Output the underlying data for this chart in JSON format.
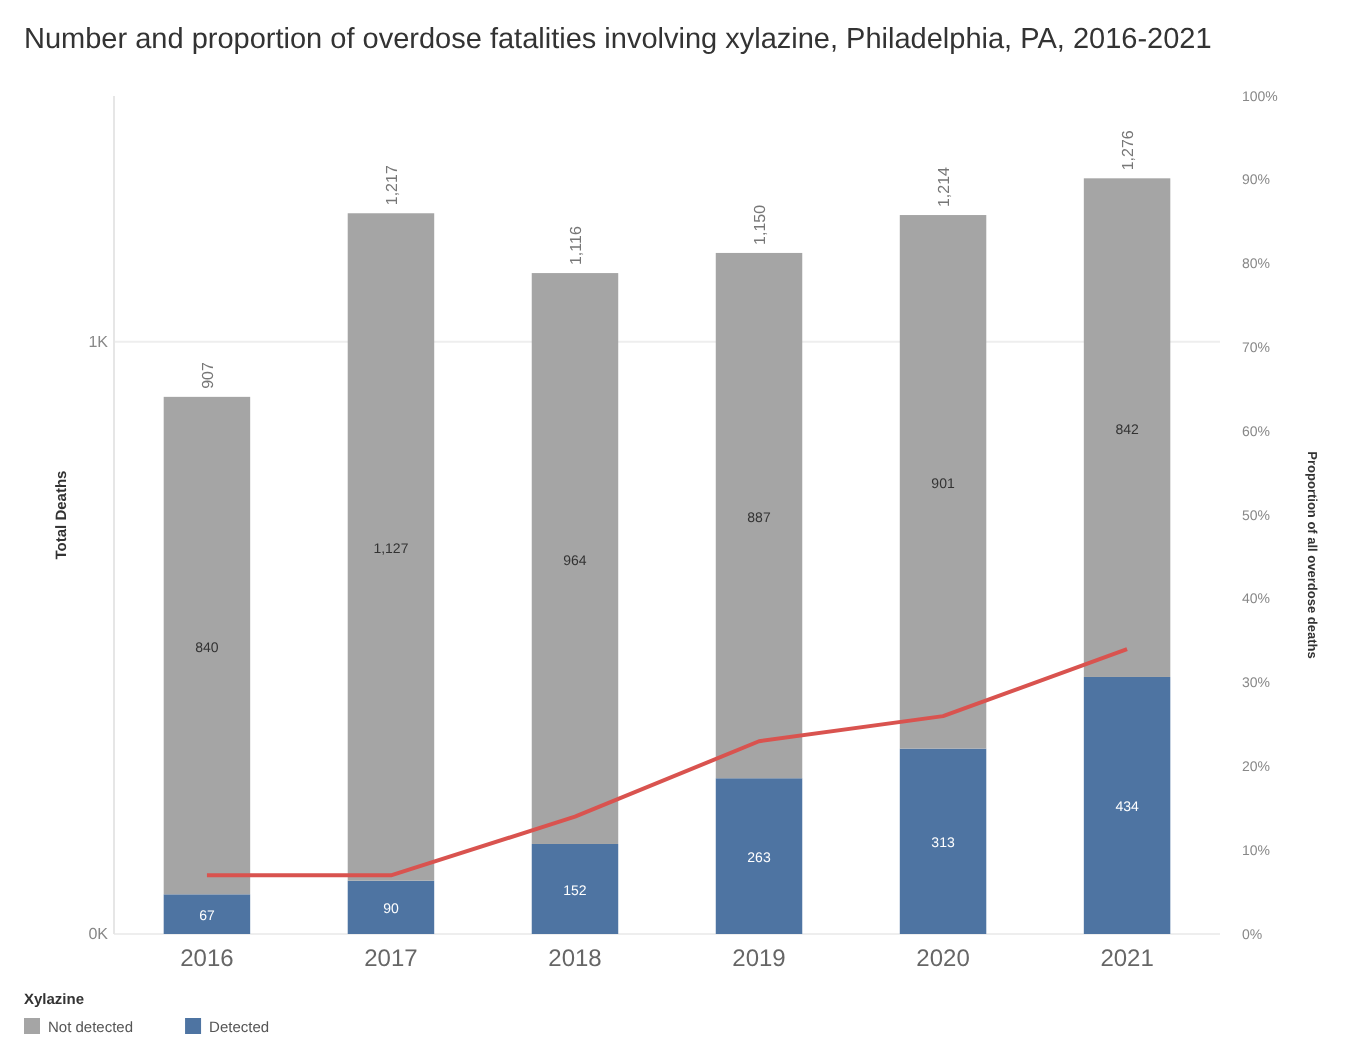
{
  "chart_data": {
    "type": "bar",
    "title": "Number and proportion of overdose fatalities involving xylazine, Philadelphia, PA, 2016-2021",
    "ylabel": "Total Deaths",
    "y2label": "Proportion of all overdose deaths",
    "legend_title": "Xylazine",
    "categories": [
      "2016",
      "2017",
      "2018",
      "2019",
      "2020",
      "2021"
    ],
    "stacked": true,
    "series": [
      {
        "name": "Detected",
        "color": "#4e74a2",
        "values": [
          67,
          90,
          152,
          263,
          313,
          434
        ],
        "value_labels": [
          "67",
          "90",
          "152",
          "263",
          "313",
          "434"
        ]
      },
      {
        "name": "Not detected",
        "color": "#a5a5a5",
        "values": [
          840,
          1127,
          964,
          887,
          901,
          842
        ],
        "value_labels": [
          "840",
          "1,127",
          "964",
          "887",
          "901",
          "842"
        ]
      },
      {
        "type": "line",
        "axis": "y2",
        "color": "#d9534f",
        "values": [
          7,
          7,
          14,
          23,
          26,
          34
        ]
      }
    ],
    "totals": [
      "907",
      "1,217",
      "1,116",
      "1,150",
      "1,214",
      "1,276"
    ],
    "ylim": [
      0,
      1415
    ],
    "yticks": [
      {
        "value": 0,
        "label": "0K"
      },
      {
        "value": 1000,
        "label": "1K"
      }
    ],
    "y2lim": [
      0,
      100
    ],
    "y2ticks": [
      {
        "value": 0,
        "label": "0%"
      },
      {
        "value": 10,
        "label": "10%"
      },
      {
        "value": 20,
        "label": "20%"
      },
      {
        "value": 30,
        "label": "30%"
      },
      {
        "value": 40,
        "label": "40%"
      },
      {
        "value": 50,
        "label": "50%"
      },
      {
        "value": 60,
        "label": "60%"
      },
      {
        "value": 70,
        "label": "70%"
      },
      {
        "value": 80,
        "label": "80%"
      },
      {
        "value": 90,
        "label": "90%"
      },
      {
        "value": 100,
        "label": "100%"
      }
    ],
    "grid": "y",
    "legend": "bottom left"
  }
}
